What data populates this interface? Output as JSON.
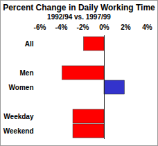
{
  "chart_data": {
    "type": "bar",
    "orientation": "horizontal",
    "title": "Percent Change in Daily Working Time",
    "subtitle": "1992/94 vs. 1997/99",
    "categories": [
      "All",
      null,
      "Men",
      "Women",
      null,
      "Weekday",
      "Weekend"
    ],
    "values": [
      -1.9,
      null,
      -3.9,
      1.9,
      null,
      -2.9,
      -2.9
    ],
    "colors": [
      "#ff0000",
      null,
      "#ff0000",
      "#3333cc",
      null,
      "#ff0000",
      "#ff0000"
    ],
    "xlim": [
      -6,
      4
    ],
    "xticks": [
      {
        "value": -6,
        "label": "-6%"
      },
      {
        "value": -4,
        "label": "-4%"
      },
      {
        "value": -2,
        "label": "-2%"
      },
      {
        "value": 0,
        "label": "0%"
      },
      {
        "value": 2,
        "label": "2%"
      },
      {
        "value": 4,
        "label": "4%"
      }
    ]
  }
}
